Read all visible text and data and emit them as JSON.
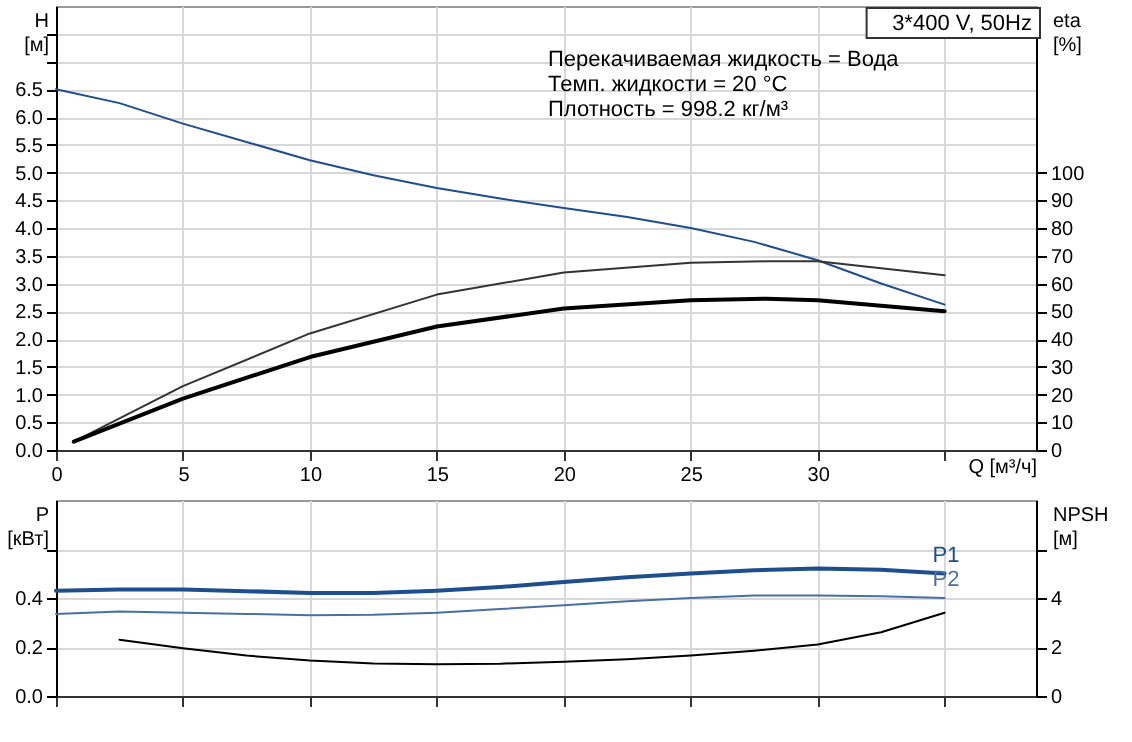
{
  "chart_data": [
    {
      "type": "line",
      "xlabel": "Q [м³/ч]",
      "ylabel": "H [м]",
      "y2label": "eta [%]",
      "annotations": [
        "3*400 V, 50Hz",
        "Перекачиваемая жидкость = Вода",
        "Темп. жидкости = 20 °C",
        "Плотность = 998.2 кг/м³"
      ],
      "xlim": [
        0,
        38.6
      ],
      "xticks": [
        0,
        5,
        10,
        15,
        20,
        25,
        30,
        {
          "value": 35,
          "label": null
        }
      ],
      "ylim": [
        0,
        8
      ],
      "yticks": [
        {
          "value": 0,
          "label": "0.0"
        },
        0.5,
        {
          "value": 1,
          "label": "1.0"
        },
        1.5,
        {
          "value": 2,
          "label": "2.0"
        },
        2.5,
        {
          "value": 3,
          "label": "3.0"
        },
        3.5,
        {
          "value": 4,
          "label": "4.0"
        },
        4.5,
        {
          "value": 5,
          "label": "5.0"
        },
        5.5,
        {
          "value": 6,
          "label": "6.0"
        },
        6.5,
        {
          "value": 7,
          "label": null
        },
        {
          "value": 7.5,
          "label": null
        }
      ],
      "y2lim": [
        0,
        160
      ],
      "y2ticks": [
        0,
        10,
        20,
        30,
        40,
        50,
        60,
        70,
        80,
        90,
        100
      ],
      "grid": true,
      "marker": "none",
      "line_style": "solid",
      "series": [
        {
          "color": "#1f4e8c",
          "x": [
            0,
            2.5,
            5,
            7.5,
            10,
            12.5,
            15,
            17.5,
            20,
            22.5,
            25,
            27.5,
            30,
            32.5,
            35
          ],
          "values": [
            6.5,
            6.25,
            5.88,
            5.55,
            5.22,
            4.95,
            4.72,
            4.53,
            4.36,
            4.2,
            4.0,
            3.75,
            3.42,
            3.0,
            2.62
          ]
        },
        {
          "color": "#333333",
          "axis": "y2",
          "x": [
            0.7,
            5,
            10,
            15,
            20,
            25,
            28,
            30,
            35
          ],
          "values": [
            3,
            23,
            42,
            56,
            64,
            67.5,
            68,
            68,
            63
          ]
        },
        {
          "color": "#000000",
          "axis": "y2",
          "x": [
            0.7,
            5,
            10,
            15,
            20,
            25,
            28,
            30,
            35
          ],
          "values": [
            3,
            18.5,
            33.5,
            44.5,
            51,
            54,
            54.5,
            54,
            50
          ]
        }
      ]
    },
    {
      "type": "line",
      "ylabel": "P [кВт]",
      "y2label": "NPSH [м]",
      "xlim": [
        0,
        38.6
      ],
      "xticks": [
        0,
        5,
        10,
        15,
        20,
        25,
        30,
        35
      ],
      "ylim": [
        0,
        0.8
      ],
      "yticks": [
        {
          "value": 0,
          "label": "0.0"
        },
        0.2,
        0.4,
        {
          "value": 0.6,
          "label": null
        }
      ],
      "y2lim": [
        0,
        8
      ],
      "y2ticks": [
        0,
        2,
        4,
        {
          "value": 6,
          "label": null
        }
      ],
      "tick_labels": "y",
      "grid": true,
      "marker": "none",
      "line_style": "solid",
      "series": [
        {
          "name": "P1",
          "color": "#1f4e8c",
          "x": [
            0,
            2.5,
            5,
            7.5,
            10,
            12.5,
            15,
            17.5,
            20,
            22.5,
            25,
            27.5,
            30,
            32.5,
            35
          ],
          "values": [
            0.43,
            0.435,
            0.435,
            0.428,
            0.42,
            0.42,
            0.43,
            0.445,
            0.465,
            0.485,
            0.5,
            0.513,
            0.52,
            0.515,
            0.5
          ]
        },
        {
          "name": "P2",
          "color": "#4a6fa5",
          "x": [
            0,
            2.5,
            5,
            7.5,
            10,
            12.5,
            15,
            17.5,
            20,
            22.5,
            25,
            27.5,
            30,
            32.5,
            35
          ],
          "values": [
            0.335,
            0.345,
            0.34,
            0.335,
            0.33,
            0.332,
            0.34,
            0.355,
            0.37,
            0.387,
            0.4,
            0.41,
            0.41,
            0.407,
            0.4
          ]
        },
        {
          "color": "#000000",
          "axis": "y2",
          "x": [
            2.5,
            5,
            7.5,
            10,
            12.5,
            15,
            17.5,
            20,
            22.5,
            25,
            27.5,
            30,
            32.5,
            35
          ],
          "values": [
            2.3,
            1.95,
            1.65,
            1.45,
            1.33,
            1.3,
            1.32,
            1.4,
            1.5,
            1.65,
            1.85,
            2.1,
            2.6,
            3.4
          ]
        }
      ]
    }
  ]
}
